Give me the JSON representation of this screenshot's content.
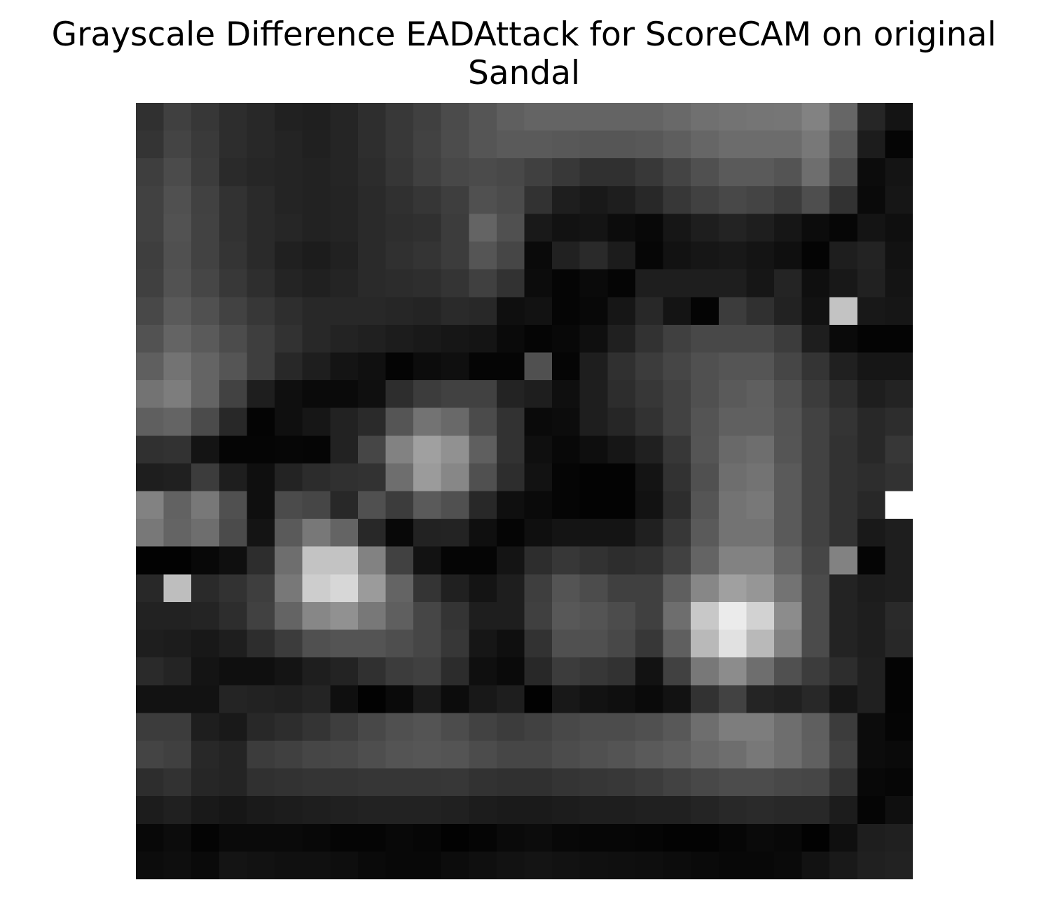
{
  "chart_data": {
    "type": "heatmap",
    "title": "Grayscale Difference EADAttack for ScoreCAM on original\nSandal",
    "title_lines": [
      "Grayscale Difference EADAttack for ScoreCAM on original",
      "Sandal"
    ],
    "colormap": "gray",
    "axes": "off",
    "value_range": [
      0,
      255
    ],
    "rows": 28,
    "cols": 28,
    "values": [
      [
        48,
        64,
        55,
        45,
        40,
        33,
        31,
        37,
        46,
        56,
        64,
        75,
        85,
        95,
        100,
        100,
        100,
        100,
        100,
        105,
        112,
        115,
        117,
        118,
        130,
        102,
        38,
        20
      ],
      [
        52,
        68,
        58,
        45,
        40,
        36,
        32,
        37,
        46,
        56,
        66,
        76,
        85,
        90,
        90,
        88,
        86,
        86,
        88,
        94,
        102,
        108,
        108,
        108,
        120,
        90,
        28,
        5
      ],
      [
        62,
        75,
        60,
        42,
        38,
        36,
        34,
        37,
        44,
        54,
        64,
        72,
        75,
        72,
        64,
        56,
        48,
        48,
        56,
        68,
        80,
        90,
        90,
        84,
        110,
        76,
        12,
        20
      ],
      [
        65,
        80,
        65,
        50,
        42,
        36,
        34,
        36,
        42,
        48,
        54,
        62,
        80,
        75,
        50,
        30,
        25,
        30,
        40,
        55,
        65,
        72,
        68,
        60,
        78,
        50,
        10,
        22
      ],
      [
        65,
        82,
        66,
        50,
        42,
        38,
        34,
        36,
        42,
        46,
        48,
        60,
        100,
        80,
        25,
        18,
        20,
        12,
        8,
        22,
        30,
        35,
        30,
        22,
        12,
        6,
        20,
        15
      ],
      [
        62,
        80,
        66,
        52,
        42,
        32,
        28,
        33,
        42,
        48,
        52,
        60,
        85,
        70,
        10,
        33,
        42,
        28,
        6,
        18,
        22,
        24,
        20,
        15,
        4,
        30,
        35,
        18
      ],
      [
        64,
        82,
        70,
        56,
        46,
        36,
        32,
        36,
        42,
        44,
        46,
        52,
        64,
        50,
        12,
        5,
        10,
        5,
        30,
        30,
        30,
        30,
        22,
        36,
        15,
        24,
        33,
        20
      ],
      [
        72,
        90,
        80,
        66,
        55,
        46,
        40,
        40,
        40,
        38,
        36,
        42,
        40,
        15,
        18,
        5,
        8,
        22,
        40,
        20,
        4,
        60,
        48,
        34,
        18,
        195,
        24,
        22
      ],
      [
        82,
        100,
        90,
        76,
        62,
        50,
        40,
        35,
        32,
        28,
        25,
        22,
        20,
        10,
        5,
        8,
        15,
        32,
        50,
        64,
        72,
        72,
        72,
        60,
        30,
        10,
        4,
        4
      ],
      [
        95,
        115,
        100,
        85,
        62,
        40,
        30,
        20,
        16,
        4,
        12,
        15,
        5,
        5,
        80,
        5,
        30,
        48,
        60,
        70,
        80,
        85,
        85,
        70,
        52,
        32,
        22,
        22
      ],
      [
        115,
        125,
        100,
        66,
        30,
        15,
        10,
        10,
        15,
        45,
        60,
        65,
        65,
        35,
        30,
        15,
        30,
        45,
        55,
        66,
        80,
        90,
        95,
        80,
        60,
        45,
        30,
        35
      ],
      [
        95,
        100,
        75,
        40,
        4,
        15,
        22,
        34,
        42,
        85,
        115,
        105,
        75,
        50,
        10,
        12,
        30,
        38,
        50,
        66,
        84,
        96,
        96,
        84,
        66,
        52,
        40,
        45
      ],
      [
        48,
        50,
        20,
        5,
        5,
        6,
        5,
        34,
        70,
        130,
        160,
        145,
        95,
        50,
        15,
        8,
        14,
        22,
        32,
        55,
        85,
        105,
        110,
        85,
        66,
        50,
        40,
        55
      ],
      [
        30,
        32,
        60,
        30,
        15,
        35,
        44,
        48,
        50,
        110,
        155,
        135,
        80,
        45,
        18,
        5,
        3,
        3,
        20,
        50,
        80,
        110,
        115,
        90,
        66,
        50,
        45,
        50
      ],
      [
        130,
        98,
        120,
        80,
        15,
        75,
        70,
        40,
        80,
        60,
        90,
        80,
        40,
        15,
        10,
        5,
        3,
        3,
        18,
        45,
        85,
        115,
        120,
        90,
        66,
        50,
        40,
        255
      ],
      [
        120,
        100,
        110,
        75,
        20,
        90,
        120,
        100,
        40,
        8,
        34,
        35,
        15,
        5,
        15,
        20,
        20,
        20,
        32,
        55,
        90,
        115,
        115,
        90,
        66,
        50,
        25,
        30
      ],
      [
        2,
        2,
        8,
        15,
        45,
        110,
        195,
        195,
        130,
        65,
        18,
        5,
        5,
        20,
        45,
        55,
        50,
        45,
        48,
        65,
        100,
        130,
        130,
        100,
        70,
        130,
        5,
        30
      ],
      [
        40,
        190,
        42,
        50,
        62,
        120,
        205,
        215,
        155,
        100,
        52,
        32,
        20,
        30,
        62,
        84,
        76,
        64,
        64,
        95,
        135,
        160,
        150,
        115,
        75,
        35,
        28,
        30
      ],
      [
        34,
        34,
        36,
        45,
        65,
        100,
        135,
        145,
        120,
        95,
        70,
        52,
        30,
        30,
        64,
        88,
        84,
        76,
        64,
        110,
        200,
        235,
        210,
        140,
        75,
        35,
        30,
        42
      ],
      [
        30,
        28,
        24,
        30,
        45,
        60,
        80,
        84,
        84,
        78,
        70,
        55,
        22,
        15,
        50,
        80,
        80,
        72,
        55,
        95,
        185,
        225,
        185,
        130,
        75,
        35,
        30,
        40
      ],
      [
        42,
        36,
        20,
        15,
        15,
        20,
        30,
        35,
        48,
        60,
        64,
        44,
        15,
        10,
        40,
        60,
        55,
        50,
        18,
        65,
        120,
        140,
        110,
        80,
        60,
        45,
        32,
        4
      ],
      [
        18,
        18,
        18,
        36,
        34,
        32,
        36,
        15,
        2,
        10,
        26,
        12,
        24,
        30,
        2,
        24,
        18,
        15,
        10,
        18,
        50,
        66,
        36,
        32,
        40,
        22,
        32,
        4
      ],
      [
        60,
        60,
        30,
        25,
        40,
        45,
        52,
        62,
        72,
        80,
        84,
        76,
        66,
        60,
        65,
        72,
        76,
        76,
        80,
        88,
        110,
        125,
        125,
        110,
        95,
        60,
        12,
        5
      ],
      [
        68,
        64,
        40,
        36,
        60,
        64,
        70,
        72,
        78,
        84,
        86,
        84,
        76,
        70,
        70,
        76,
        80,
        84,
        90,
        95,
        104,
        110,
        120,
        110,
        96,
        65,
        12,
        10
      ],
      [
        45,
        50,
        38,
        36,
        48,
        50,
        52,
        52,
        54,
        54,
        54,
        55,
        50,
        48,
        48,
        52,
        54,
        56,
        60,
        66,
        72,
        76,
        76,
        72,
        70,
        50,
        8,
        6
      ],
      [
        28,
        32,
        25,
        22,
        26,
        28,
        30,
        32,
        34,
        34,
        34,
        32,
        28,
        26,
        26,
        28,
        30,
        30,
        32,
        32,
        36,
        40,
        42,
        40,
        40,
        28,
        5,
        15
      ],
      [
        8,
        12,
        4,
        10,
        10,
        10,
        8,
        5,
        5,
        8,
        6,
        2,
        5,
        10,
        12,
        8,
        6,
        6,
        5,
        3,
        3,
        6,
        10,
        8,
        2,
        15,
        30,
        32
      ],
      [
        12,
        14,
        10,
        20,
        18,
        16,
        16,
        14,
        10,
        8,
        8,
        12,
        15,
        18,
        20,
        18,
        16,
        15,
        14,
        12,
        10,
        8,
        8,
        10,
        18,
        25,
        32,
        34
      ]
    ]
  }
}
